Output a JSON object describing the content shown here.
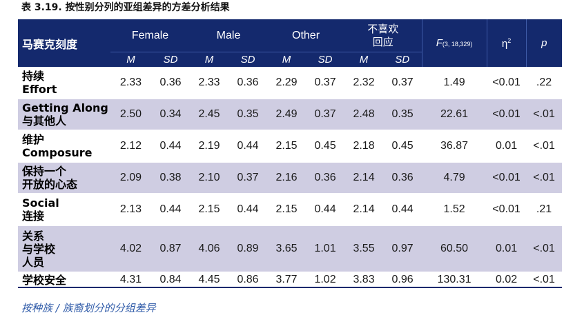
{
  "title": "表 3.19. 按性别分列的亚组差异的方差分析结果",
  "header": {
    "label": "马赛克刻度",
    "groups": [
      "Female",
      "Male",
      "Other",
      "不喜欢",
      "回应"
    ],
    "m": "M",
    "sd": "SD",
    "f_main": "F",
    "f_sub": "(3, 18,329)",
    "eta": "η",
    "eta_sup": "2",
    "p": "p"
  },
  "rows": [
    {
      "label1": "持续",
      "label2": "Effort",
      "label3": "",
      "vals": [
        "2.33",
        "0.36",
        "2.33",
        "0.36",
        "2.29",
        "0.37",
        "2.32",
        "0.37",
        "1.49",
        "<0.01",
        ".22"
      ]
    },
    {
      "label1": "Getting Along",
      "label2": "与其他人",
      "label3": "",
      "vals": [
        "2.50",
        "0.34",
        "2.45",
        "0.35",
        "2.49",
        "0.37",
        "2.48",
        "0.35",
        "22.61",
        "<0.01",
        "<.01"
      ]
    },
    {
      "label1": "维护",
      "label2": "Composure",
      "label3": "",
      "vals": [
        "2.12",
        "0.44",
        "2.19",
        "0.44",
        "2.15",
        "0.45",
        "2.18",
        "0.45",
        "36.87",
        "0.01",
        "<.01"
      ]
    },
    {
      "label1": "保持一个",
      "label2": "开放的心态",
      "label3": "",
      "vals": [
        "2.09",
        "0.38",
        "2.10",
        "0.37",
        "2.16",
        "0.36",
        "2.14",
        "0.36",
        "4.79",
        "<0.01",
        "<.01"
      ]
    },
    {
      "label1": "Social",
      "label2": "连接",
      "label3": "",
      "vals": [
        "2.13",
        "0.44",
        "2.15",
        "0.44",
        "2.15",
        "0.44",
        "2.14",
        "0.44",
        "1.52",
        "<0.01",
        ".21"
      ]
    },
    {
      "label1": "关系",
      "label2": "与学校",
      "label3": "人员",
      "vals": [
        "4.02",
        "0.87",
        "4.06",
        "0.89",
        "3.65",
        "1.01",
        "3.55",
        "0.97",
        "60.50",
        "0.01",
        "<.01"
      ]
    },
    {
      "label1": "学校安全",
      "label2": "",
      "label3": "",
      "vals": [
        "4.31",
        "0.84",
        "4.45",
        "0.86",
        "3.77",
        "1.02",
        "3.83",
        "0.96",
        "130.31",
        "0.02",
        "<.01"
      ]
    }
  ],
  "footer": "按种族 / 族裔划分的分组差异"
}
